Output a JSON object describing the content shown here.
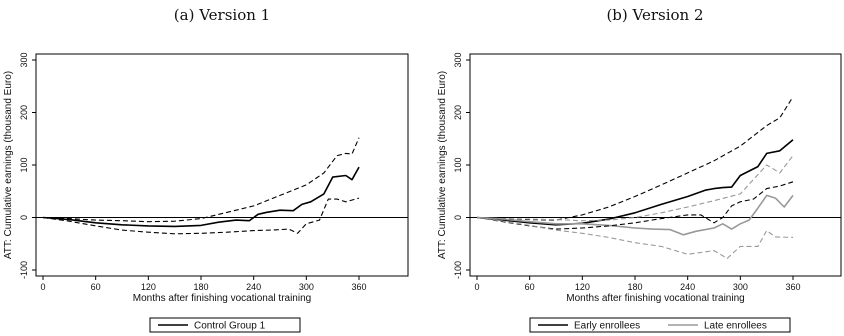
{
  "chart_data": [
    {
      "type": "line",
      "title": "(a) Version 1",
      "xlabel": "Months after finishing vocational training",
      "ylabel": "ATT: Cumulative earnings (thousand Euro)",
      "xlim": [
        0,
        360
      ],
      "ylim": [
        -100,
        300
      ],
      "xticks": [
        "0",
        "60",
        "120",
        "180",
        "240",
        "300",
        "360"
      ],
      "yticks": [
        "-100",
        "0",
        "100",
        "200",
        "300"
      ],
      "zero_line": true,
      "legend": "bottom",
      "series": [
        {
          "name": "Control Group 1",
          "color": "#000000",
          "style": "solid",
          "x": [
            0,
            30,
            60,
            90,
            120,
            150,
            180,
            200,
            220,
            235,
            245,
            255,
            270,
            285,
            295,
            305,
            320,
            330,
            345,
            352,
            360
          ],
          "y": [
            0,
            -4,
            -10,
            -14,
            -16,
            -17,
            -15,
            -9,
            -5,
            -6,
            6,
            10,
            14,
            13,
            25,
            30,
            45,
            77,
            80,
            72,
            96
          ]
        },
        {
          "name": "",
          "color": "#000000",
          "style": "dashed",
          "x": [
            0,
            30,
            60,
            90,
            120,
            150,
            180,
            210,
            240,
            270,
            300,
            320,
            335,
            345,
            352,
            360
          ],
          "y": [
            0,
            -2,
            -5,
            -6,
            -8,
            -7,
            -2,
            10,
            22,
            42,
            62,
            85,
            118,
            122,
            121,
            152
          ]
        },
        {
          "name": "",
          "color": "#000000",
          "style": "dashed",
          "x": [
            0,
            30,
            60,
            90,
            120,
            150,
            180,
            210,
            240,
            260,
            280,
            290,
            300,
            315,
            325,
            335,
            345,
            360
          ],
          "y": [
            0,
            -7,
            -16,
            -24,
            -28,
            -31,
            -30,
            -28,
            -25,
            -24,
            -22,
            -30,
            -12,
            -5,
            35,
            35,
            30,
            37
          ]
        }
      ]
    },
    {
      "type": "line",
      "title": "(b) Version 2",
      "xlabel": "Months after finishing vocational training",
      "ylabel": "ATT: Cumulative earnings (thousand Euro)",
      "xlim": [
        0,
        360
      ],
      "ylim": [
        -100,
        300
      ],
      "xticks": [
        "0",
        "60",
        "120",
        "180",
        "240",
        "300",
        "360"
      ],
      "yticks": [
        "-100",
        "0",
        "100",
        "200",
        "300"
      ],
      "zero_line": true,
      "legend": "bottom",
      "series": [
        {
          "name": "Early enrollees",
          "color": "#000000",
          "style": "solid",
          "x": [
            0,
            30,
            60,
            90,
            120,
            150,
            180,
            210,
            240,
            260,
            270,
            280,
            290,
            300,
            320,
            330,
            345,
            360
          ],
          "y": [
            0,
            -5,
            -10,
            -14,
            -11,
            -3,
            9,
            25,
            40,
            52,
            55,
            57,
            58,
            80,
            97,
            122,
            127,
            148
          ]
        },
        {
          "name": "Late enrollees",
          "color": "#999999",
          "style": "solid",
          "x": [
            0,
            30,
            60,
            90,
            120,
            150,
            180,
            200,
            220,
            235,
            250,
            270,
            280,
            290,
            300,
            310,
            320,
            330,
            340,
            350,
            360
          ],
          "y": [
            0,
            -3,
            -8,
            -12,
            -12,
            -15,
            -20,
            -22,
            -23,
            -33,
            -26,
            -20,
            -12,
            -22,
            -12,
            -5,
            18,
            42,
            37,
            20,
            42
          ]
        },
        {
          "name": "",
          "color": "#000000",
          "style": "dashed",
          "x": [
            0,
            30,
            60,
            90,
            120,
            150,
            180,
            210,
            240,
            270,
            300,
            330,
            345,
            360
          ],
          "y": [
            0,
            -2,
            -4,
            -5,
            5,
            20,
            40,
            62,
            85,
            108,
            136,
            175,
            190,
            230
          ]
        },
        {
          "name": "",
          "color": "#000000",
          "style": "dashed",
          "x": [
            0,
            30,
            60,
            90,
            120,
            150,
            180,
            210,
            240,
            255,
            270,
            280,
            290,
            300,
            315,
            330,
            345,
            360
          ],
          "y": [
            0,
            -8,
            -16,
            -22,
            -20,
            -16,
            -10,
            -2,
            5,
            5,
            -10,
            0,
            22,
            30,
            35,
            55,
            60,
            68
          ]
        },
        {
          "name": "",
          "color": "#999999",
          "style": "dashed",
          "x": [
            0,
            30,
            60,
            90,
            120,
            150,
            180,
            210,
            240,
            270,
            300,
            330,
            345,
            360
          ],
          "y": [
            0,
            -2,
            -3,
            -4,
            -6,
            -5,
            0,
            9,
            20,
            32,
            45,
            100,
            85,
            118
          ]
        },
        {
          "name": "",
          "color": "#999999",
          "style": "dashed",
          "x": [
            0,
            30,
            60,
            90,
            120,
            150,
            180,
            210,
            240,
            270,
            285,
            300,
            320,
            330,
            340,
            360
          ],
          "y": [
            0,
            -7,
            -15,
            -24,
            -30,
            -38,
            -48,
            -55,
            -70,
            -63,
            -78,
            -55,
            -55,
            -25,
            -37,
            -38
          ]
        }
      ]
    }
  ]
}
